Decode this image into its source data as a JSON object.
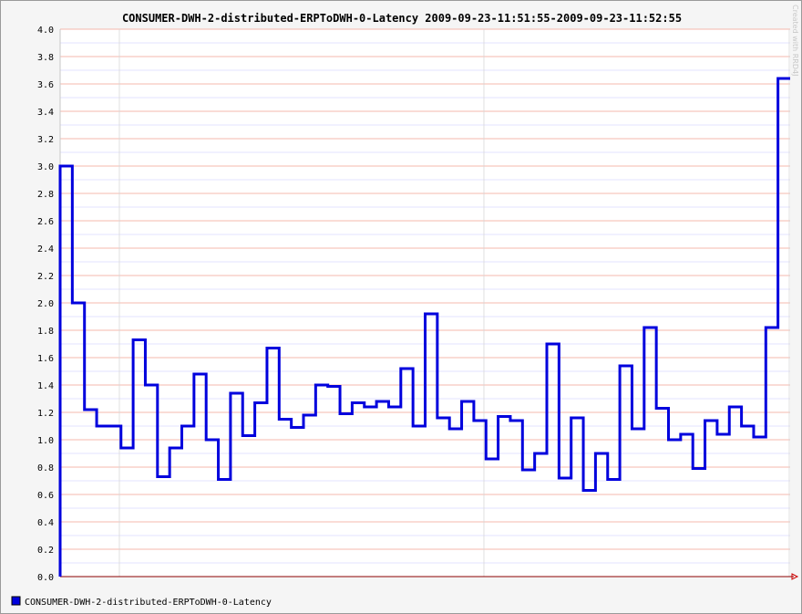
{
  "chart_data": {
    "type": "line",
    "step": true,
    "title": "CONSUMER-DWH-2-distributed-ERPToDWH-0-Latency 2009-09-23-11:51:55-2009-09-23-11:52:55",
    "xlabel": "",
    "ylabel": "",
    "ylim": [
      0,
      4.0
    ],
    "y_ticks": [
      "0.0",
      "0.2",
      "0.4",
      "0.6",
      "0.8",
      "1.0",
      "1.2",
      "1.4",
      "1.6",
      "1.8",
      "2.0",
      "2.2",
      "2.4",
      "2.6",
      "2.8",
      "3.0",
      "3.2",
      "3.4",
      "3.6",
      "3.8",
      "4.0"
    ],
    "x_range_seconds": [
      0,
      60
    ],
    "grid": true,
    "legend_position": "bottom-left",
    "series": [
      {
        "name": "CONSUMER-DWH-2-distributed-ERPToDWH-0-Latency",
        "color": "#0000dd",
        "values": [
          3.0,
          2.0,
          1.22,
          1.1,
          1.1,
          0.94,
          1.73,
          1.4,
          0.73,
          0.94,
          1.1,
          1.48,
          1.0,
          0.71,
          1.34,
          1.03,
          1.27,
          1.67,
          1.15,
          1.09,
          1.18,
          1.4,
          1.39,
          1.19,
          1.27,
          1.24,
          1.28,
          1.24,
          1.52,
          1.1,
          1.92,
          1.16,
          1.08,
          1.28,
          1.14,
          0.86,
          1.17,
          1.14,
          0.78,
          0.9,
          1.7,
          0.72,
          1.16,
          0.63,
          0.9,
          0.71,
          1.54,
          1.08,
          1.82,
          1.23,
          1.0,
          1.04,
          0.79,
          1.14,
          1.04,
          1.24,
          1.1,
          1.02,
          1.82,
          3.64
        ]
      }
    ]
  },
  "credit": "Created with RRD4J",
  "colors": {
    "background": "#f5f5f5",
    "plot_background": "#ffffff",
    "major_grid": "#f0a090",
    "minor_grid": "#c8c8ff",
    "axis": "#8b0000",
    "line": "#0000dd"
  }
}
